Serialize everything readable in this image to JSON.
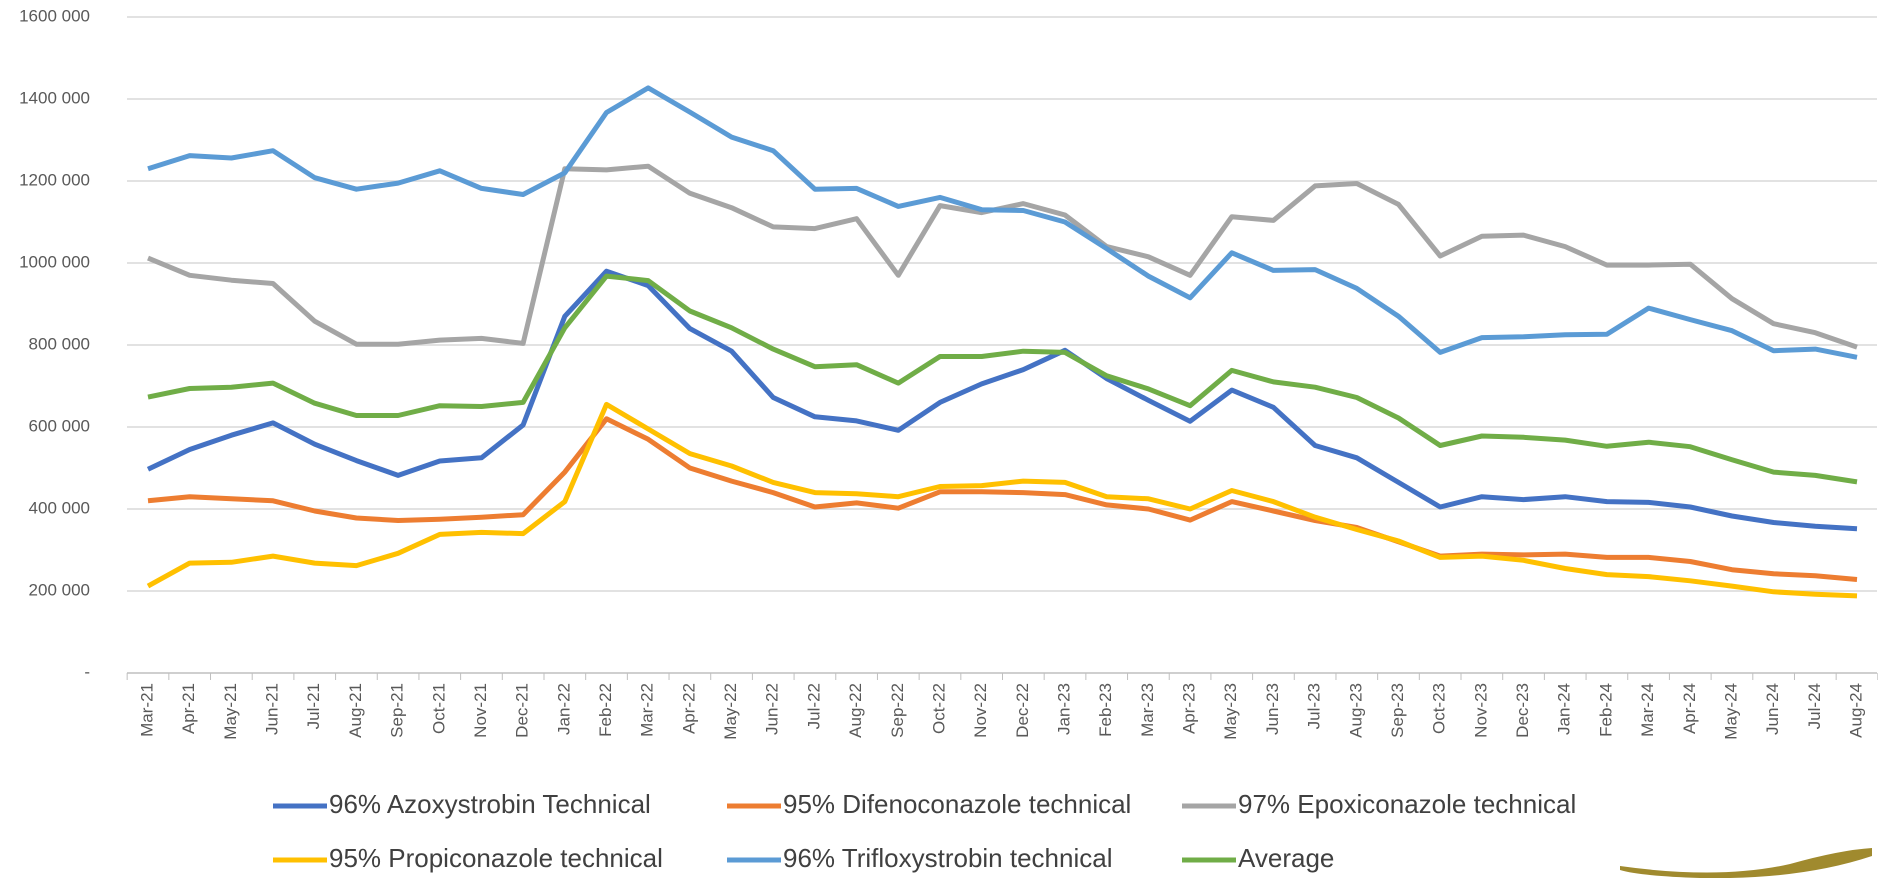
{
  "chart_data": {
    "type": "line",
    "categories": [
      "Mar-21",
      "Apr-21",
      "May-21",
      "Jun-21",
      "Jul-21",
      "Aug-21",
      "Sep-21",
      "Oct-21",
      "Nov-21",
      "Dec-21",
      "Jan-22",
      "Feb-22",
      "Mar-22",
      "Apr-22",
      "May-22",
      "Jun-22",
      "Jul-22",
      "Aug-22",
      "Sep-22",
      "Oct-22",
      "Nov-22",
      "Dec-22",
      "Jan-23",
      "Feb-23",
      "Mar-23",
      "Apr-23",
      "May-23",
      "Jun-23",
      "Jul-23",
      "Aug-23",
      "Sep-23",
      "Oct-23",
      "Nov-23",
      "Dec-23",
      "Jan-24",
      "Feb-24",
      "Mar-24",
      "Apr-24",
      "May-24",
      "Jun-24",
      "Jul-24",
      "Aug-24"
    ],
    "series": [
      {
        "name": "96% Azoxystrobin Technical",
        "color": "#4472c4",
        "values": [
          497000,
          545000,
          580000,
          610000,
          558000,
          518000,
          482000,
          517000,
          525000,
          605000,
          870000,
          980000,
          945000,
          840000,
          785000,
          672000,
          625000,
          615000,
          592000,
          660000,
          705000,
          740000,
          787000,
          718000,
          665000,
          614000,
          690000,
          648000,
          555000,
          525000,
          465000,
          405000,
          430000,
          423000,
          430000,
          418000,
          416000,
          405000,
          383000,
          367000,
          358000,
          352000
        ]
      },
      {
        "name": "95% Difenoconazole technical",
        "color": "#ed7d31",
        "values": [
          420000,
          430000,
          425000,
          420000,
          395000,
          378000,
          372000,
          375000,
          380000,
          386000,
          490000,
          620000,
          570000,
          500000,
          468000,
          440000,
          405000,
          415000,
          402000,
          442000,
          442000,
          440000,
          435000,
          410000,
          400000,
          373000,
          418000,
          395000,
          372000,
          355000,
          320000,
          285000,
          290000,
          288000,
          290000,
          282000,
          282000,
          272000,
          252000,
          242000,
          237000,
          228000
        ]
      },
      {
        "name": "97% Epoxiconazole technical",
        "color": "#a5a5a5",
        "values": [
          1012000,
          970000,
          958000,
          950000,
          858000,
          802000,
          802000,
          812000,
          816000,
          804000,
          1230000,
          1227000,
          1236000,
          1170000,
          1135000,
          1088000,
          1084000,
          1108000,
          970000,
          1140000,
          1123000,
          1145000,
          1117000,
          1040000,
          1015000,
          970000,
          1113000,
          1104000,
          1188000,
          1194000,
          1143000,
          1017000,
          1065000,
          1068000,
          1040000,
          995000,
          995000,
          997000,
          913000,
          852000,
          830000,
          795000
        ]
      },
      {
        "name": "95% Propiconazole technical",
        "color": "#ffc000",
        "values": [
          212000,
          268000,
          270000,
          285000,
          268000,
          262000,
          292000,
          338000,
          343000,
          340000,
          418000,
          655000,
          595000,
          535000,
          505000,
          465000,
          440000,
          437000,
          430000,
          455000,
          457000,
          468000,
          465000,
          430000,
          425000,
          400000,
          445000,
          418000,
          380000,
          350000,
          322000,
          282000,
          285000,
          275000,
          255000,
          240000,
          235000,
          225000,
          212000,
          198000,
          192000,
          188000
        ]
      },
      {
        "name": "96% Trifloxystrobin technical",
        "color": "#5b9bd5",
        "values": [
          1230000,
          1262000,
          1256000,
          1274000,
          1208000,
          1180000,
          1195000,
          1225000,
          1182000,
          1167000,
          1220000,
          1367000,
          1427000,
          1368000,
          1307000,
          1274000,
          1180000,
          1182000,
          1138000,
          1160000,
          1130000,
          1128000,
          1100000,
          1035000,
          968000,
          915000,
          1025000,
          982000,
          984000,
          938000,
          870000,
          782000,
          818000,
          820000,
          825000,
          826000,
          890000,
          862000,
          835000,
          786000,
          790000,
          770000
        ]
      },
      {
        "name": "Average",
        "color": "#70ad47",
        "values": [
          673000,
          694000,
          697000,
          707000,
          658000,
          628000,
          628000,
          652000,
          650000,
          660000,
          842000,
          968000,
          957000,
          883000,
          842000,
          790000,
          747000,
          752000,
          707000,
          772000,
          772000,
          785000,
          782000,
          725000,
          693000,
          652000,
          738000,
          710000,
          697000,
          672000,
          622000,
          555000,
          578000,
          575000,
          568000,
          553000,
          563000,
          552000,
          520000,
          490000,
          482000,
          466000
        ]
      }
    ],
    "ylim": [
      0,
      1600000
    ],
    "yticks": [
      {
        "value": 0,
        "label": "-"
      },
      {
        "value": 200000,
        "label": "200 000"
      },
      {
        "value": 400000,
        "label": "400 000"
      },
      {
        "value": 600000,
        "label": "600 000"
      },
      {
        "value": 800000,
        "label": "800 000"
      },
      {
        "value": 1000000,
        "label": "1000 000"
      },
      {
        "value": 1200000,
        "label": "1200 000"
      },
      {
        "value": 1400000,
        "label": "1400 000"
      },
      {
        "value": 1600000,
        "label": "1600 000"
      }
    ],
    "grid": true
  }
}
